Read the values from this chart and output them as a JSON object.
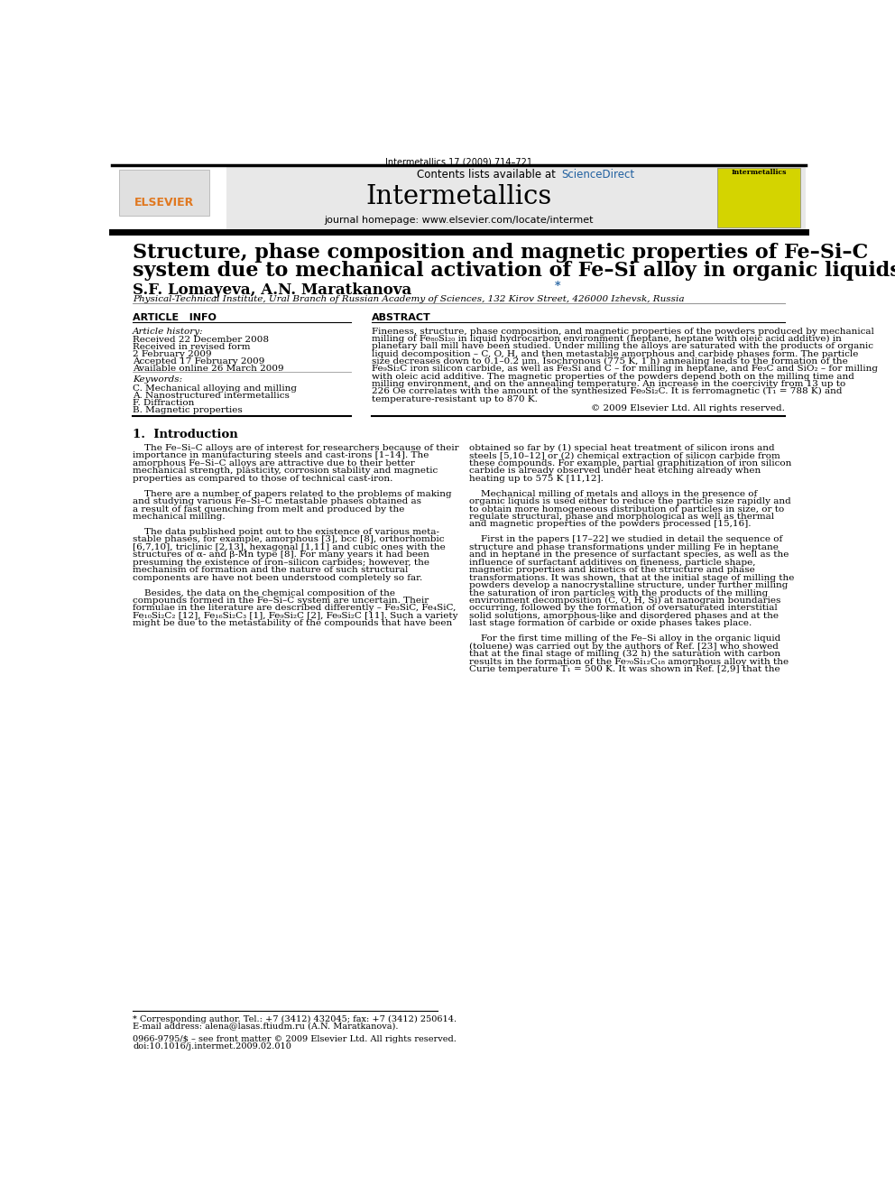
{
  "page_width": 9.92,
  "page_height": 13.23,
  "bg_color": "#ffffff",
  "top_journal_ref": "Intermetallics 17 (2009) 714–721",
  "header_bg": "#e8e8e8",
  "header_text_contents": "Contents lists available at",
  "header_sciencedirect": "ScienceDirect",
  "header_journal_name": "Intermetallics",
  "header_homepage": "journal homepage: www.elsevier.com/locate/intermet",
  "article_title_line1": "Structure, phase composition and magnetic properties of Fe–Si–C",
  "article_title_line2": "system due to mechanical activation of Fe–Si alloy in organic liquids",
  "authors_main": "S.F. Lomayeva, A.N. Maratkanova",
  "affiliation": "Physical-Technical Institute, Ural Branch of Russian Academy of Sciences, 132 Kirov Street, 426000 Izhevsk, Russia",
  "section_article_info": "ARTICLE   INFO",
  "section_abstract": "ABSTRACT",
  "article_history_label": "Article history:",
  "received1": "Received 22 December 2008",
  "received2": "Received in revised form",
  "received2b": "2 February 2009",
  "accepted": "Accepted 17 February 2009",
  "available": "Available online 26 March 2009",
  "keywords_label": "Keywords:",
  "keyword1": "C. Mechanical alloying and milling",
  "keyword2": "A. Nanostructured intermetallics",
  "keyword3": "F. Diffraction",
  "keyword4": "B. Magnetic properties",
  "copyright": "© 2009 Elsevier Ltd. All rights reserved.",
  "intro_heading": "1.  Introduction",
  "footnote_star": "* Corresponding author. Tel.: +7 (3412) 432045; fax: +7 (3412) 250614.",
  "footnote_email": "E-mail address: alena@lasas.ftiudm.ru (A.N. Maratkanova).",
  "footnote_issn": "0966-9795/$ – see front matter © 2009 Elsevier Ltd. All rights reserved.",
  "footnote_doi": "doi:10.1016/j.intermet.2009.02.010",
  "abstract_lines": [
    "Fineness, structure, phase composition, and magnetic properties of the powders produced by mechanical",
    "milling of Fe₈₀Si₂₀ in liquid hydrocarbon environment (heptane, heptane with oleic acid additive) in",
    "planetary ball mill have been studied. Under milling the alloys are saturated with the products of organic",
    "liquid decomposition – C, O, H, and then metastable amorphous and carbide phases form. The particle",
    "size decreases down to 0.1–0.2 μm. Isochronous (775 K, 1 h) annealing leads to the formation of the",
    "Fe₉Si₂C iron silicon carbide, as well as Fe₃Si and C – for milling in heptane, and Fe₃C and SiO₂ – for milling",
    "with oleic acid additive. The magnetic properties of the powders depend both on the milling time and",
    "milling environment, and on the annealing temperature. An increase in the coercivity from 13 up to",
    "226 Oe correlates with the amount of the synthesized Fe₉Si₂C. It is ferromagnetic (T₁ = 788 K) and",
    "temperature-resistant up to 870 K."
  ],
  "intro_left_lines": [
    "    The Fe–Si–C alloys are of interest for researchers because of their",
    "importance in manufacturing steels and cast-irons [1–14]. The",
    "amorphous Fe–Si–C alloys are attractive due to their better",
    "mechanical strength, plasticity, corrosion stability and magnetic",
    "properties as compared to those of technical cast-iron.",
    "",
    "    There are a number of papers related to the problems of making",
    "and studying various Fe–Si–C metastable phases obtained as",
    "a result of fast quenching from melt and produced by the",
    "mechanical milling.",
    "",
    "    The data published point out to the existence of various meta-",
    "stable phases, for example, amorphous [3], bcc [8], orthorhombic",
    "[6,7,10], triclinic [2,13], hexagonal [1,11] and cubic ones with the",
    "structures of α- and β-Mn type [8]. For many years it had been",
    "presuming the existence of iron–silicon carbides; however, the",
    "mechanism of formation and the nature of such structural",
    "components are have not been understood completely so far.",
    "",
    "    Besides, the data on the chemical composition of the",
    "compounds formed in the Fe–Si–C system are uncertain. Their",
    "formulae in the literature are described differently – Fe₃SiC, Fe₄SiC,",
    "Fe₁₀Si₂C₂ [12], Fe₁₆Si₂C₃ [1], Fe₉Si₂C [2], Fe₉Si₂C [11]. Such a variety",
    "might be due to the metastability of the compounds that have been"
  ],
  "intro_right_lines": [
    "obtained so far by (1) special heat treatment of silicon irons and",
    "steels [5,10–12] or (2) chemical extraction of silicon carbide from",
    "these compounds. For example, partial graphitization of iron silicon",
    "carbide is already observed under heat etching already when",
    "heating up to 575 K [11,12].",
    "",
    "    Mechanical milling of metals and alloys in the presence of",
    "organic liquids is used either to reduce the particle size rapidly and",
    "to obtain more homogeneous distribution of particles in size, or to",
    "regulate structural, phase and morphological as well as thermal",
    "and magnetic properties of the powders processed [15,16].",
    "",
    "    First in the papers [17–22] we studied in detail the sequence of",
    "structure and phase transformations under milling Fe in heptane",
    "and in heptane in the presence of surfactant species, as well as the",
    "influence of surfactant additives on fineness, particle shape,",
    "magnetic properties and kinetics of the structure and phase",
    "transformations. It was shown, that at the initial stage of milling the",
    "powders develop a nanocrystalline structure, under further milling",
    "the saturation of iron particles with the products of the milling",
    "environment decomposition (C, O, H, Si) at nanograin boundaries",
    "occurring, followed by the formation of oversaturated interstitial",
    "solid solutions, amorphous-like and disordered phases and at the",
    "last stage formation of carbide or oxide phases takes place.",
    "",
    "    For the first time milling of the Fe–Si alloy in the organic liquid",
    "(toluene) was carried out by the authors of Ref. [23] who showed",
    "that at the final stage of milling (32 h) the saturation with carbon",
    "results in the formation of the Fe₇₀Si₁₂C₁₈ amorphous alloy with the",
    "Curie temperature T₁ = 500 K. It was shown in Ref. [2,9] that the"
  ]
}
